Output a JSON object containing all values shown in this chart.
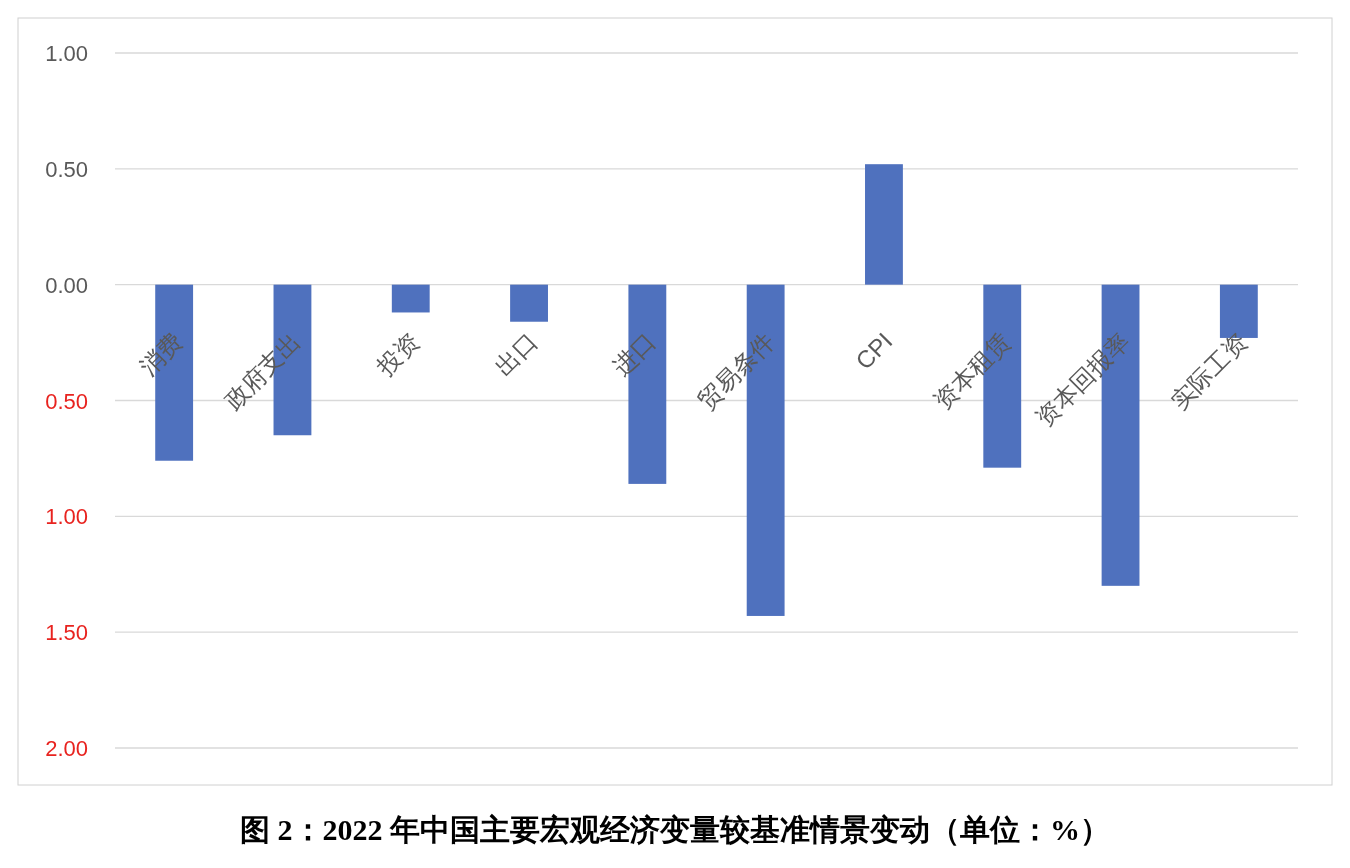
{
  "chart_data": {
    "type": "bar",
    "title": "图 2：2022 年中国主要宏观经济变量较基准情景变动（单位：%）",
    "categories": [
      "消费",
      "政府支出",
      "投资",
      "出口",
      "进口",
      "贸易条件",
      "CPI",
      "资本租赁",
      "资本回报率",
      "实际工资"
    ],
    "values": [
      -0.76,
      -0.65,
      -0.12,
      -0.16,
      -0.86,
      -1.43,
      0.52,
      -0.79,
      -1.3,
      -0.23
    ],
    "color": "#4f71be",
    "ylim": [
      -2,
      1
    ],
    "yticks": [
      {
        "value": 1,
        "label": "1.00"
      },
      {
        "value": 0.5,
        "label": "0.50"
      },
      {
        "value": 0,
        "label": "0.00"
      },
      {
        "value": -0.5,
        "label": "0.50"
      },
      {
        "value": -1,
        "label": "1.00"
      },
      {
        "value": -1.5,
        "label": "1.50"
      },
      {
        "value": -2,
        "label": "2.00"
      }
    ],
    "grid": "y"
  }
}
